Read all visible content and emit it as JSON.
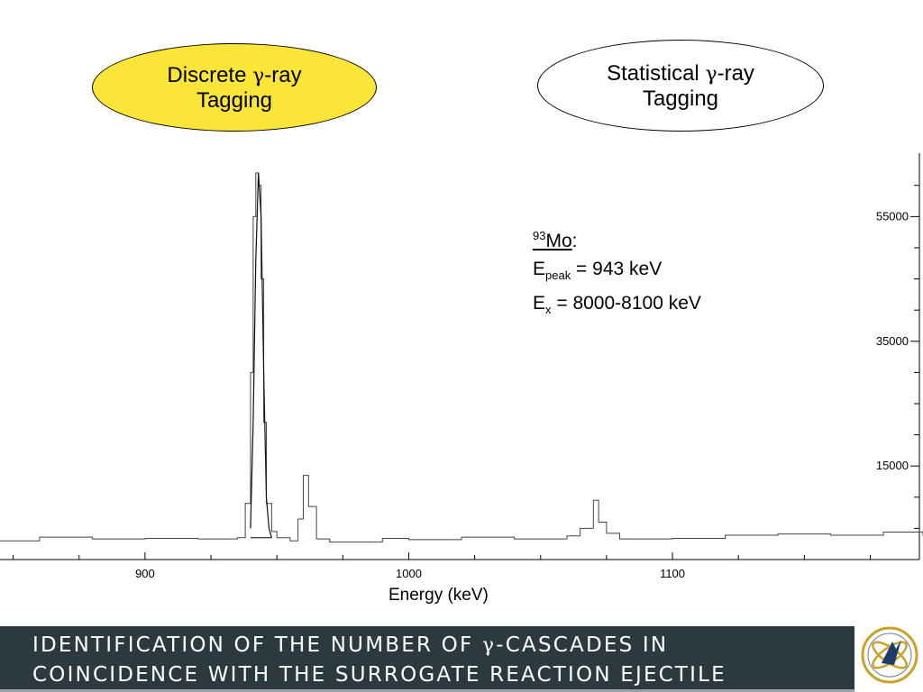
{
  "tags": {
    "discrete": {
      "line1_pre": "Discrete ",
      "gamma": "γ",
      "line1_post": "-ray",
      "line2": "Tagging",
      "fill": "#fbe539"
    },
    "statistical": {
      "line1_pre": "Statistical ",
      "gamma": "γ",
      "line1_post": "-ray",
      "line2": "Tagging",
      "fill": "#ffffff"
    }
  },
  "annotation": {
    "isotope_mass": "93",
    "isotope_symbol": "Mo",
    "isotope_colon": ":",
    "epeak_E": "E",
    "epeak_sub": "peak",
    "epeak_value": " = 943 keV",
    "ex_E": "E",
    "ex_sub": "x",
    "ex_value": " = 8000-8100 keV"
  },
  "footer": {
    "line1_pre": "IDENTIFICATION OF THE NUMBER OF ",
    "gamma": "γ",
    "line1_post": "-CASCADES IN",
    "line2": "COINCIDENCE WITH THE SURROGATE REACTION EJECTILE",
    "bg_color": "#2c3a3f"
  },
  "chart_data": {
    "type": "line",
    "title": "",
    "xlabel": "Energy (keV)",
    "ylabel": "",
    "xlim": [
      845,
      1195
    ],
    "ylim": [
      0,
      63000
    ],
    "xticks": [
      900,
      1000,
      1100
    ],
    "yticks": [
      15000,
      35000,
      55000
    ],
    "series": [
      {
        "x": [
          845,
          860,
          880,
          900,
          920,
          935,
          938,
          940,
          941,
          942,
          943,
          944,
          945,
          946,
          948,
          950,
          955,
          958,
          960,
          962,
          965,
          970,
          990,
          1000,
          1020,
          1040,
          1060,
          1065,
          1070,
          1072,
          1075,
          1080,
          1100,
          1120,
          1140,
          1160,
          1180,
          1195
        ],
        "y": [
          3000,
          3600,
          3300,
          3400,
          3300,
          3500,
          9000,
          30000,
          55000,
          62000,
          60000,
          45000,
          22000,
          9000,
          4500,
          3500,
          3000,
          6500,
          13500,
          8500,
          3300,
          2800,
          3400,
          3200,
          3600,
          3300,
          3800,
          5000,
          9500,
          6000,
          4200,
          3300,
          3400,
          3900,
          4100,
          3900,
          4400,
          3800
        ]
      },
      {
        "x": [
          940,
          941,
          942,
          943,
          944,
          945,
          946,
          947,
          948
        ],
        "y": [
          5000,
          22000,
          48000,
          62000,
          55000,
          30000,
          10000,
          5000,
          3500
        ]
      }
    ]
  }
}
